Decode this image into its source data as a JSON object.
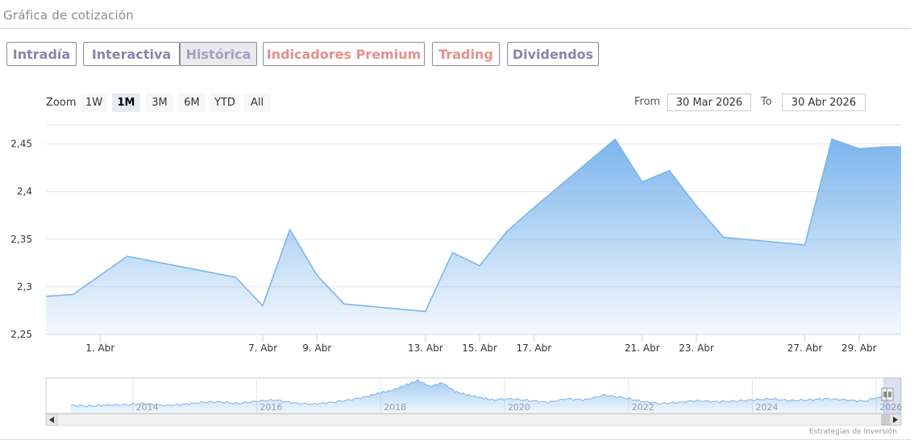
{
  "header": {
    "title": "Gráfica de cotización"
  },
  "tabs": [
    {
      "label": "Intradía",
      "style": "purple"
    },
    {
      "label": "Interactiva",
      "style": "purple"
    },
    {
      "label": "Histórica",
      "style": "active"
    },
    {
      "label": "Indicadores Premium",
      "style": "red"
    },
    {
      "label": "Trading",
      "style": "red"
    },
    {
      "label": "Dividendos",
      "style": "purple"
    }
  ],
  "zoom": {
    "label": "Zoom",
    "buttons": [
      "1W",
      "1M",
      "3M",
      "6M",
      "YTD",
      "All"
    ],
    "selected": "1M"
  },
  "range": {
    "from_label": "From",
    "from_value": "30 Mar 2026",
    "to_label": "To",
    "to_value": "30 Abr 2026"
  },
  "colors": {
    "line": "#7cb5ec",
    "fill_top": "#7cb5ec",
    "nav_fill": "#7cb5ec"
  },
  "chart_data": [
    {
      "type": "area",
      "title": "",
      "xlabel": "",
      "ylabel": "",
      "ylim": [
        2.25,
        2.47
      ],
      "y_ticks": [
        2.25,
        2.3,
        2.35,
        2.4,
        2.45
      ],
      "y_tick_labels": [
        "2,25",
        "2,3",
        "2,35",
        "2,4",
        "2,45"
      ],
      "x_tick_days": [
        1,
        7,
        9,
        13,
        15,
        17,
        21,
        23,
        27,
        29
      ],
      "x_tick_labels": [
        "1. Abr",
        "7. Abr",
        "9. Abr",
        "13. Abr",
        "15. Abr",
        "17. Abr",
        "21. Abr",
        "23. Abr",
        "27. Abr",
        "29. Abr"
      ],
      "xlim_days": [
        30.0,
        30.55
      ],
      "series": [
        {
          "x": [
            "2026-03-30",
            "2026-03-31",
            "2026-04-02",
            "2026-04-06",
            "2026-04-07",
            "2026-04-08",
            "2026-04-09",
            "2026-04-10",
            "2026-04-13",
            "2026-04-14",
            "2026-04-15",
            "2026-04-16",
            "2026-04-17",
            "2026-04-20",
            "2026-04-21",
            "2026-04-22",
            "2026-04-23",
            "2026-04-24",
            "2026-04-27",
            "2026-04-28",
            "2026-04-29",
            "2026-04-30",
            "2026-05-01"
          ],
          "values": [
            2.29,
            2.292,
            2.332,
            2.31,
            2.28,
            2.36,
            2.312,
            2.282,
            2.274,
            2.336,
            2.322,
            2.358,
            2.383,
            2.455,
            2.41,
            2.422,
            2.385,
            2.352,
            2.344,
            2.455,
            2.445,
            2.447,
            2.447
          ]
        }
      ]
    },
    {
      "type": "area",
      "title": "",
      "xlabel": "",
      "ylabel": "",
      "x_tick_labels": [
        "2014",
        "2016",
        "2018",
        "2020",
        "2022",
        "2024",
        "2026"
      ],
      "x_years": [
        2013.0,
        2013.3,
        2013.6,
        2013.9,
        2014.2,
        2014.5,
        2014.8,
        2015.1,
        2015.4,
        2015.7,
        2016.0,
        2016.3,
        2016.6,
        2016.9,
        2017.2,
        2017.5,
        2017.8,
        2018.0,
        2018.2,
        2018.4,
        2018.6,
        2018.8,
        2019.0,
        2019.2,
        2019.4,
        2019.6,
        2019.8,
        2020.1,
        2020.4,
        2020.7,
        2021.0,
        2021.3,
        2021.6,
        2021.9,
        2022.2,
        2022.5,
        2022.8,
        2023.1,
        2023.4,
        2023.7,
        2024.0,
        2024.3,
        2024.6,
        2024.9,
        2025.2,
        2025.5,
        2025.8,
        2026.2
      ],
      "values": [
        1.55,
        1.5,
        1.58,
        1.6,
        1.7,
        1.55,
        1.62,
        1.8,
        1.85,
        1.7,
        1.9,
        2.0,
        1.75,
        1.65,
        1.8,
        2.0,
        2.3,
        2.6,
        2.8,
        3.2,
        3.6,
        3.1,
        3.4,
        2.7,
        2.4,
        2.2,
        2.0,
        2.1,
        1.95,
        1.8,
        2.1,
        2.0,
        2.4,
        2.2,
        1.9,
        1.7,
        1.8,
        1.95,
        1.85,
        1.9,
        2.0,
        2.1,
        1.95,
        2.0,
        2.1,
        2.0,
        1.9,
        2.45
      ]
    }
  ],
  "credits": "Estrategias de Inversión"
}
